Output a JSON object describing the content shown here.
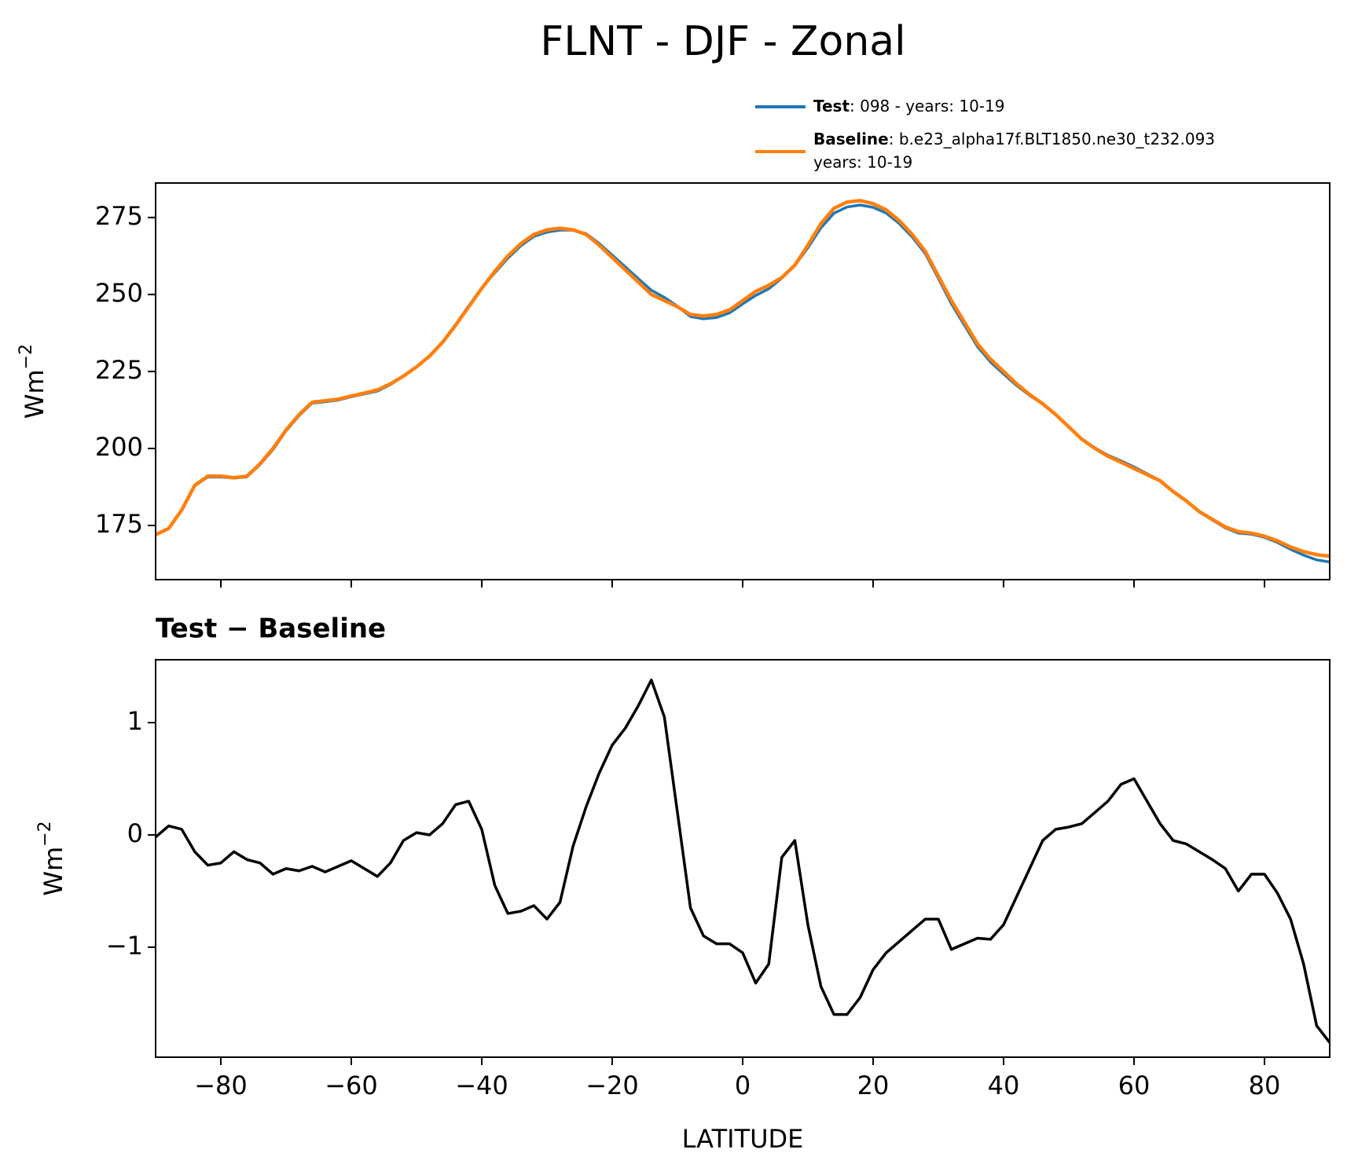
{
  "chart_data": [
    {
      "type": "line",
      "title": "FLNT - DJF - Zonal",
      "ylabel": {
        "base": "Wm",
        "exponent": "−2"
      },
      "x": [
        -90,
        -88,
        -86,
        -84,
        -82,
        -80,
        -78,
        -76,
        -74,
        -72,
        -70,
        -68,
        -66,
        -64,
        -62,
        -60,
        -58,
        -56,
        -54,
        -52,
        -50,
        -48,
        -46,
        -44,
        -42,
        -40,
        -38,
        -36,
        -34,
        -32,
        -30,
        -28,
        -26,
        -24,
        -22,
        -20,
        -18,
        -16,
        -14,
        -12,
        -10,
        -8,
        -6,
        -4,
        -2,
        0,
        2,
        4,
        6,
        8,
        10,
        12,
        14,
        16,
        18,
        20,
        22,
        24,
        26,
        28,
        30,
        32,
        34,
        36,
        38,
        40,
        42,
        44,
        46,
        48,
        50,
        52,
        54,
        56,
        58,
        60,
        62,
        64,
        66,
        68,
        70,
        72,
        74,
        76,
        78,
        80,
        82,
        84,
        86,
        88,
        90
      ],
      "series": [
        {
          "name": "Test",
          "description": [
            ": 098 - years: 10-19"
          ],
          "color": "#1f77b4",
          "values": [
            171.98,
            174.08,
            180.05,
            187.85,
            190.73,
            190.75,
            190.35,
            190.78,
            194.75,
            199.65,
            205.7,
            210.68,
            214.72,
            215.17,
            215.72,
            216.77,
            217.7,
            218.63,
            220.75,
            223.45,
            226.52,
            230,
            234.6,
            240.27,
            246.3,
            252.05,
            257.05,
            261.8,
            265.82,
            268.87,
            270.25,
            270.9,
            270.9,
            269.75,
            266.55,
            262.8,
            258.95,
            255.15,
            251.38,
            249.05,
            246.2,
            242.85,
            242.1,
            242.53,
            244.03,
            246.95,
            249.68,
            251.85,
            255.3,
            259.45,
            265.2,
            271.65,
            276.4,
            278.4,
            279.05,
            278.3,
            276.45,
            273.05,
            268.65,
            263.25,
            255.25,
            246.98,
            240.03,
            233.08,
            228.07,
            224.2,
            220.45,
            217.2,
            214.45,
            211.05,
            207.07,
            203.1,
            200.2,
            197.8,
            195.95,
            194,
            191.8,
            189.6,
            185.95,
            182.92,
            179.35,
            176.78,
            174.2,
            172.5,
            172.15,
            171.15,
            169.48,
            167.25,
            165.35,
            163.8,
            163.15
          ]
        },
        {
          "name": "Baseline",
          "description": [
            ": b.e23_alpha17f.BLT1850.ne30_t232.093",
            "years: 10-19"
          ],
          "color": "#ff7f0e",
          "values": [
            172,
            174,
            180,
            188,
            191,
            191,
            190.5,
            191,
            195,
            200,
            206,
            211,
            215,
            215.5,
            216,
            217,
            218,
            219,
            221,
            223.5,
            226.5,
            230,
            234.5,
            240,
            246,
            252,
            257.5,
            262.5,
            266.5,
            269.5,
            271,
            271.5,
            271,
            269.5,
            266,
            262,
            258,
            254,
            250,
            248,
            246,
            243.5,
            243,
            243.5,
            245,
            248,
            251,
            253,
            255.5,
            259.5,
            266,
            273,
            278,
            280,
            280.5,
            279.5,
            277.5,
            274,
            269.5,
            264,
            256,
            248,
            241,
            234,
            229,
            225,
            221,
            217.5,
            214.5,
            211,
            207,
            203,
            200,
            197.5,
            195.5,
            193.5,
            191.5,
            189.5,
            186,
            183,
            179.5,
            177,
            174.5,
            173,
            172.5,
            171.5,
            170,
            168,
            166.5,
            165.5,
            165
          ]
        }
      ],
      "xlim": [
        -90,
        90
      ],
      "xticks": [
        -80,
        -60,
        -40,
        -20,
        0,
        20,
        40,
        60,
        80
      ],
      "ylim": [
        157.4,
        286.2
      ],
      "yticks": [
        175,
        200,
        225,
        250,
        275
      ]
    },
    {
      "type": "line",
      "title": "Test − Baseline",
      "xlabel": "LATITUDE",
      "ylabel": {
        "base": "Wm",
        "exponent": "−2"
      },
      "x": [
        -90,
        -88,
        -86,
        -84,
        -82,
        -80,
        -78,
        -76,
        -74,
        -72,
        -70,
        -68,
        -66,
        -64,
        -62,
        -60,
        -58,
        -56,
        -54,
        -52,
        -50,
        -48,
        -46,
        -44,
        -42,
        -40,
        -38,
        -36,
        -34,
        -32,
        -30,
        -28,
        -26,
        -24,
        -22,
        -20,
        -18,
        -16,
        -14,
        -12,
        -10,
        -8,
        -6,
        -4,
        -2,
        0,
        2,
        4,
        6,
        8,
        10,
        12,
        14,
        16,
        18,
        20,
        22,
        24,
        26,
        28,
        30,
        32,
        34,
        36,
        38,
        40,
        42,
        44,
        46,
        48,
        50,
        52,
        54,
        56,
        58,
        60,
        62,
        64,
        66,
        68,
        70,
        72,
        74,
        76,
        78,
        80,
        82,
        84,
        86,
        88,
        90
      ],
      "series": [
        {
          "color": "#000000",
          "values": [
            -0.02,
            0.08,
            0.05,
            -0.15,
            -0.27,
            -0.25,
            -0.15,
            -0.22,
            -0.25,
            -0.35,
            -0.3,
            -0.32,
            -0.28,
            -0.33,
            -0.28,
            -0.23,
            -0.3,
            -0.37,
            -0.25,
            -0.05,
            0.02,
            0,
            0.1,
            0.27,
            0.3,
            0.05,
            -0.45,
            -0.7,
            -0.68,
            -0.63,
            -0.75,
            -0.6,
            -0.1,
            0.25,
            0.55,
            0.8,
            0.95,
            1.15,
            1.38,
            1.05,
            0.2,
            -0.65,
            -0.9,
            -0.97,
            -0.97,
            -1.05,
            -1.32,
            -1.15,
            -0.2,
            -0.05,
            -0.8,
            -1.35,
            -1.6,
            -1.6,
            -1.45,
            -1.2,
            -1.05,
            -0.95,
            -0.85,
            -0.75,
            -0.75,
            -1.02,
            -0.97,
            -0.92,
            -0.93,
            -0.8,
            -0.55,
            -0.3,
            -0.05,
            0.05,
            0.07,
            0.1,
            0.2,
            0.3,
            0.45,
            0.5,
            0.3,
            0.1,
            -0.05,
            -0.08,
            -0.15,
            -0.22,
            -0.3,
            -0.5,
            -0.35,
            -0.35,
            -0.52,
            -0.75,
            -1.15,
            -1.7,
            -1.85
          ]
        }
      ],
      "xlim": [
        -90,
        90
      ],
      "xticks": [
        {
          "value": -80,
          "label": "−80"
        },
        {
          "value": -60,
          "label": "−60"
        },
        {
          "value": -40,
          "label": "−40"
        },
        {
          "value": -20,
          "label": "−20"
        },
        0,
        20,
        40,
        60,
        80
      ],
      "ylim": [
        -1.98,
        1.56
      ],
      "yticks": [
        {
          "value": -1,
          "label": "−1"
        },
        0,
        1
      ]
    }
  ]
}
